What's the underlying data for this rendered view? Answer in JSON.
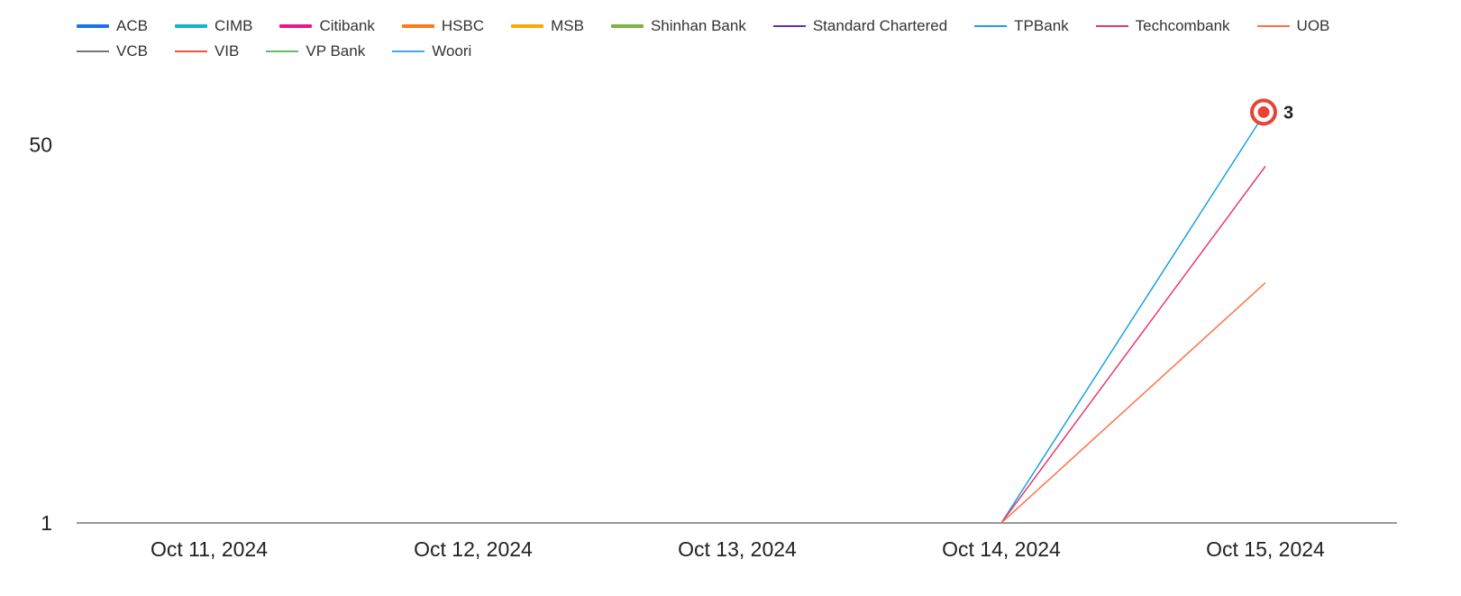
{
  "chart_data": {
    "type": "line",
    "title": "",
    "xlabel": "",
    "ylabel": "",
    "x": [
      "Oct 11, 2024",
      "Oct 12, 2024",
      "Oct 13, 2024",
      "Oct 14, 2024",
      "Oct 15, 2024"
    ],
    "y_scale": "log",
    "ylim": [
      1,
      80
    ],
    "y_ticks": [
      1,
      50
    ],
    "grid": false,
    "legend_position": "top",
    "series": [
      {
        "name": "ACB",
        "color": "#1a73e8",
        "thick": true,
        "values": [
          null,
          null,
          null,
          null,
          null
        ]
      },
      {
        "name": "CIMB",
        "color": "#12b5cb",
        "thick": true,
        "values": [
          null,
          null,
          null,
          null,
          null
        ]
      },
      {
        "name": "Citibank",
        "color": "#e8178a",
        "thick": true,
        "values": [
          null,
          null,
          null,
          null,
          null
        ]
      },
      {
        "name": "HSBC",
        "color": "#fa7b17",
        "thick": true,
        "values": [
          null,
          null,
          null,
          null,
          null
        ]
      },
      {
        "name": "MSB",
        "color": "#f9ab00",
        "thick": true,
        "values": [
          null,
          null,
          null,
          null,
          null
        ]
      },
      {
        "name": "Shinhan Bank",
        "color": "#7cb342",
        "thick": true,
        "values": [
          null,
          null,
          null,
          null,
          null
        ]
      },
      {
        "name": "Standard Chartered",
        "color": "#5e35b1",
        "thick": false,
        "values": [
          null,
          null,
          null,
          null,
          null
        ]
      },
      {
        "name": "TPBank",
        "color": "#1ba1e2",
        "thick": false,
        "values": [
          null,
          null,
          null,
          1,
          70
        ]
      },
      {
        "name": "Techcombank",
        "color": "#e5396e",
        "thick": false,
        "values": [
          null,
          null,
          null,
          1,
          40
        ]
      },
      {
        "name": "UOB",
        "color": "#ff7043",
        "thick": false,
        "values": [
          null,
          null,
          null,
          1,
          12
        ]
      },
      {
        "name": "VCB",
        "color": "#757575",
        "thick": false,
        "values": [
          null,
          null,
          null,
          null,
          null
        ]
      },
      {
        "name": "VIB",
        "color": "#ef5350",
        "thick": false,
        "values": [
          null,
          null,
          null,
          null,
          null
        ]
      },
      {
        "name": "VP Bank",
        "color": "#66bb6a",
        "thick": false,
        "values": [
          null,
          null,
          null,
          null,
          null
        ]
      },
      {
        "name": "Woori",
        "color": "#42a5f5",
        "thick": false,
        "values": [
          null,
          null,
          null,
          null,
          null
        ]
      }
    ],
    "highlight": {
      "series": "TPBank",
      "x": "Oct 15, 2024",
      "label": "3",
      "color": "#ea4335"
    }
  }
}
